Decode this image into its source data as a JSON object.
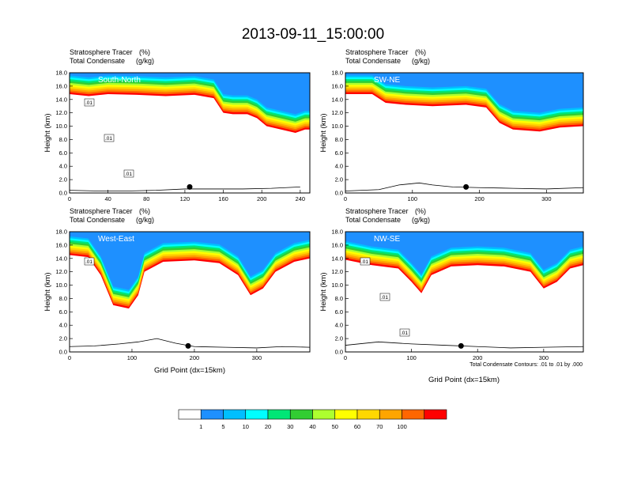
{
  "figure": {
    "title": "2013-09-11_15:00:00",
    "subtitle_left": "Stratosphere Tracer",
    "subtitle_units": "(%)",
    "subtitle_left2": "Total Condensate",
    "subtitle_units2": "(g/kg)",
    "xlabel": "Grid Point (dx=15km)",
    "ylabel": "Height (km)",
    "contour_note": "Total Condensate Contours: .01 to .01 by .000"
  },
  "chart_data": [
    {
      "type": "heatmap",
      "panel": "South-North",
      "xlim": [
        0,
        250
      ],
      "ylim": [
        0,
        18
      ],
      "xticks": [
        "0",
        "40",
        "80",
        "120",
        "160",
        "200",
        "240"
      ],
      "yticks": [
        "0.0",
        "2.0",
        "4.0",
        "6.0",
        "8.0",
        "10.0",
        "12.0",
        "14.0",
        "16.0",
        "18.0"
      ],
      "tracer_base_km": [
        [
          0,
          14.8
        ],
        [
          20,
          14.5
        ],
        [
          40,
          14.8
        ],
        [
          70,
          14.7
        ],
        [
          100,
          14.5
        ],
        [
          130,
          14.7
        ],
        [
          150,
          14.2
        ],
        [
          160,
          12.0
        ],
        [
          170,
          11.8
        ],
        [
          185,
          11.8
        ],
        [
          195,
          11.2
        ],
        [
          205,
          10.0
        ],
        [
          220,
          9.5
        ],
        [
          235,
          9.0
        ],
        [
          245,
          9.5
        ]
      ],
      "terrain_km": [
        [
          0,
          0.4
        ],
        [
          30,
          0.3
        ],
        [
          60,
          0.3
        ],
        [
          90,
          0.4
        ],
        [
          120,
          0.6
        ],
        [
          150,
          0.6
        ],
        [
          180,
          0.6
        ],
        [
          210,
          0.7
        ],
        [
          240,
          0.9
        ]
      ],
      "marker_x": 125,
      "contour_labels": [
        ".01",
        ".01",
        ".01"
      ]
    },
    {
      "type": "heatmap",
      "panel": "SW-NE",
      "xlim": [
        0,
        355
      ],
      "ylim": [
        0,
        18
      ],
      "xticks": [
        "0",
        "100",
        "200",
        "300"
      ],
      "yticks": [
        "0.0",
        "2.0",
        "4.0",
        "6.0",
        "8.0",
        "10.0",
        "12.0",
        "14.0",
        "16.0",
        "18.0"
      ],
      "tracer_base_km": [
        [
          0,
          14.8
        ],
        [
          40,
          14.8
        ],
        [
          60,
          13.5
        ],
        [
          90,
          13.2
        ],
        [
          130,
          13.0
        ],
        [
          180,
          13.2
        ],
        [
          210,
          12.8
        ],
        [
          230,
          10.5
        ],
        [
          250,
          9.5
        ],
        [
          290,
          9.2
        ],
        [
          320,
          9.8
        ],
        [
          355,
          10.0
        ]
      ],
      "terrain_km": [
        [
          0,
          0.3
        ],
        [
          50,
          0.5
        ],
        [
          80,
          1.2
        ],
        [
          110,
          1.5
        ],
        [
          130,
          1.2
        ],
        [
          160,
          0.9
        ],
        [
          200,
          0.8
        ],
        [
          250,
          0.7
        ],
        [
          300,
          0.6
        ],
        [
          355,
          0.8
        ]
      ],
      "marker_x": 180,
      "contour_labels": []
    },
    {
      "type": "heatmap",
      "panel": "West-East",
      "xlim": [
        0,
        385
      ],
      "ylim": [
        0,
        18
      ],
      "xticks": [
        "0",
        "100",
        "200",
        "300"
      ],
      "yticks": [
        "0.0",
        "2.0",
        "4.0",
        "6.0",
        "8.0",
        "10.0",
        "12.0",
        "14.0",
        "16.0",
        "18.0"
      ],
      "tracer_base_km": [
        [
          0,
          14.5
        ],
        [
          30,
          14.2
        ],
        [
          50,
          11.5
        ],
        [
          70,
          7.0
        ],
        [
          95,
          6.5
        ],
        [
          110,
          8.5
        ],
        [
          120,
          12.0
        ],
        [
          150,
          13.5
        ],
        [
          200,
          13.7
        ],
        [
          240,
          13.3
        ],
        [
          270,
          11.5
        ],
        [
          290,
          8.5
        ],
        [
          310,
          9.5
        ],
        [
          330,
          12.0
        ],
        [
          360,
          13.5
        ],
        [
          385,
          14.0
        ]
      ],
      "terrain_km": [
        [
          0,
          0.8
        ],
        [
          40,
          0.9
        ],
        [
          80,
          1.2
        ],
        [
          110,
          1.5
        ],
        [
          140,
          2.0
        ],
        [
          170,
          1.3
        ],
        [
          200,
          0.8
        ],
        [
          250,
          0.7
        ],
        [
          300,
          0.6
        ],
        [
          340,
          0.8
        ],
        [
          385,
          0.7
        ]
      ],
      "marker_x": 190,
      "contour_labels": [
        ".01"
      ]
    },
    {
      "type": "heatmap",
      "panel": "NW-SE",
      "xlim": [
        0,
        360
      ],
      "ylim": [
        0,
        18
      ],
      "xticks": [
        "0",
        "100",
        "200",
        "300"
      ],
      "yticks": [
        "0.0",
        "2.0",
        "4.0",
        "6.0",
        "8.0",
        "10.0",
        "12.0",
        "14.0",
        "16.0",
        "18.0"
      ],
      "tracer_base_km": [
        [
          0,
          13.8
        ],
        [
          40,
          13.0
        ],
        [
          80,
          12.5
        ],
        [
          100,
          10.5
        ],
        [
          115,
          8.8
        ],
        [
          130,
          11.5
        ],
        [
          160,
          12.8
        ],
        [
          200,
          13.0
        ],
        [
          240,
          12.8
        ],
        [
          280,
          12.0
        ],
        [
          300,
          9.5
        ],
        [
          320,
          10.5
        ],
        [
          340,
          12.5
        ],
        [
          360,
          13.0
        ]
      ],
      "terrain_km": [
        [
          0,
          1.0
        ],
        [
          50,
          1.5
        ],
        [
          100,
          1.2
        ],
        [
          150,
          1.0
        ],
        [
          200,
          0.8
        ],
        [
          250,
          0.6
        ],
        [
          300,
          0.7
        ],
        [
          360,
          0.8
        ]
      ],
      "marker_x": 175,
      "contour_labels": [
        ".01",
        ".01",
        ".01"
      ]
    }
  ],
  "colorbar": {
    "labels": [
      "1",
      "5",
      "10",
      "20",
      "30",
      "40",
      "50",
      "60",
      "70",
      "100"
    ],
    "colors": [
      "#ffffff",
      "#1e90ff",
      "#00bfff",
      "#00ffff",
      "#00e676",
      "#32cd32",
      "#adff2f",
      "#ffff00",
      "#ffd700",
      "#ffa500",
      "#ff6600",
      "#ff0000"
    ]
  }
}
